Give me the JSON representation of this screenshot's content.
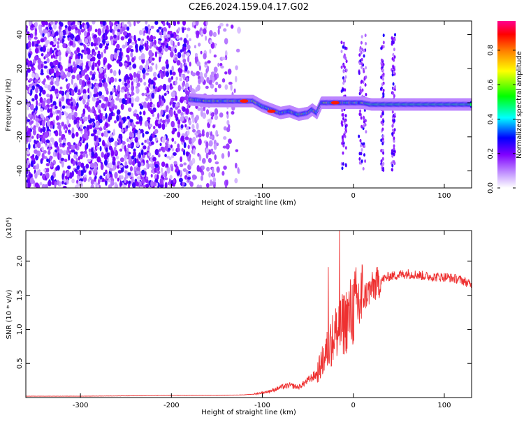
{
  "title": "C2E6.2024.159.04.17.G02",
  "chart_data": [
    {
      "type": "heatmap",
      "xlabel": "Height of straight line (km)",
      "ylabel": "Frequency (Hz)",
      "xlim": [
        -360,
        130
      ],
      "ylim": [
        -50,
        48
      ],
      "xticks": [
        -300,
        -200,
        -100,
        0,
        100
      ],
      "yticks": [
        -40,
        -20,
        0,
        20,
        40
      ],
      "grid": false,
      "colorbar": {
        "label": "Normalized spectral amplitude",
        "range": [
          0,
          0.97
        ],
        "ticks": [
          0.0,
          0.2,
          0.4,
          0.6,
          0.8
        ],
        "tick_labels": [
          "0.0",
          "0.2",
          "0.4",
          "0.6",
          "0.8"
        ],
        "colormap": [
          "#ff0090",
          "#ff0000",
          "#ff8000",
          "#ffff00",
          "#00ff00",
          "#00ffff",
          "#0000ff",
          "#8000ff",
          "#ffffff"
        ]
      },
      "ridge": {
        "description_points_x": [
          -180,
          -160,
          -140,
          -125,
          -110,
          -100,
          -90,
          -80,
          -70,
          -60,
          -50,
          -45,
          -40,
          -35,
          -30,
          -20,
          -10,
          0,
          10,
          20,
          40,
          60,
          80,
          100,
          120,
          130
        ],
        "description_points_y": [
          2,
          1,
          1,
          1,
          1,
          -2,
          -4,
          -6,
          -5,
          -7,
          -6,
          -4,
          -6,
          0,
          0,
          0,
          0,
          0,
          0,
          -1,
          -1,
          -1,
          -1,
          -1,
          -1,
          -1
        ],
        "peak_amplitude": 0.9
      }
    },
    {
      "type": "line",
      "xlabel": "Height of straight line (km)",
      "ylabel": "SNR (10 * v/v)",
      "yscale_note": "(x10⁴)",
      "xlim": [
        -360,
        130
      ],
      "ylim": [
        0,
        2.45
      ],
      "xticks": [
        -300,
        -200,
        -100,
        0,
        100
      ],
      "yticks": [
        0.5,
        1.0,
        1.5,
        2.0
      ],
      "ytick_labels": [
        "0.5",
        "1.0",
        "1.5",
        "2.0"
      ],
      "grid": false,
      "color": "#ee3030",
      "x": [
        -360,
        -300,
        -200,
        -150,
        -120,
        -110,
        -100,
        -90,
        -80,
        -70,
        -60,
        -50,
        -40,
        -35,
        -30,
        -25,
        -20,
        -15,
        -10,
        -5,
        0,
        10,
        20,
        30,
        40,
        50,
        60,
        70,
        80,
        90,
        100,
        110,
        120,
        130
      ],
      "values": [
        0.02,
        0.02,
        0.03,
        0.03,
        0.04,
        0.05,
        0.07,
        0.1,
        0.15,
        0.18,
        0.15,
        0.25,
        0.35,
        0.5,
        0.65,
        0.8,
        0.95,
        1.0,
        1.1,
        1.2,
        1.3,
        1.45,
        1.6,
        1.72,
        1.78,
        1.8,
        1.82,
        1.8,
        1.78,
        1.77,
        1.77,
        1.75,
        1.72,
        1.65
      ]
    }
  ]
}
